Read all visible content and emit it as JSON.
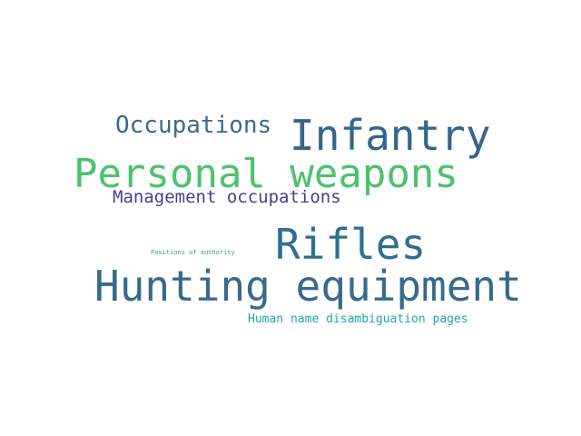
{
  "words": [
    {
      "text": "Occupations",
      "color": "#3b6a8e"
    },
    {
      "text": "Infantry",
      "color": "#34658c"
    },
    {
      "text": "Personal weapons",
      "color": "#4cc26c"
    },
    {
      "text": "Management occupations",
      "color": "#4a3f86"
    },
    {
      "text": "Positions of authority",
      "color": "#2ca88a"
    },
    {
      "text": "Rifles",
      "color": "#2f6f8f"
    },
    {
      "text": "Hunting equipment",
      "color": "#376a8c"
    },
    {
      "text": "Human name disambiguation pages",
      "color": "#22a7a0"
    }
  ]
}
